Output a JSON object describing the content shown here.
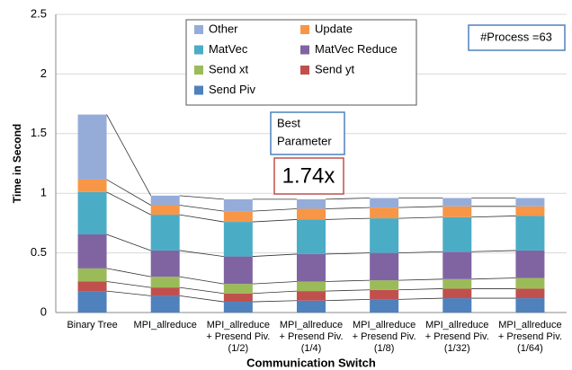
{
  "chart_data": {
    "type": "stacked_bar",
    "xlabel": "Communication Switch",
    "ylabel": "Time in Second",
    "categories": [
      [
        "Binary Tree"
      ],
      [
        "MPI_allreduce"
      ],
      [
        "MPI_allreduce",
        "+ Presend Piv.",
        "(1/2)"
      ],
      [
        "MPI_allreduce",
        "+ Presend Piv.",
        "(1/4)"
      ],
      [
        "MPI_allreduce",
        "+ Presend Piv.",
        "(1/8)"
      ],
      [
        "MPI_allreduce",
        "+ Presend Piv.",
        "(1/32)"
      ],
      [
        "MPI_allreduce",
        "+ Presend Piv.",
        "(1/64)"
      ]
    ],
    "series": [
      {
        "name": "Send Piv",
        "color": "#4f81bd",
        "values": [
          0.18,
          0.14,
          0.09,
          0.1,
          0.11,
          0.12,
          0.12
        ]
      },
      {
        "name": "Send yt",
        "color": "#c0504d",
        "values": [
          0.08,
          0.07,
          0.07,
          0.08,
          0.08,
          0.08,
          0.08
        ]
      },
      {
        "name": "Send xt",
        "color": "#9bbb59",
        "values": [
          0.11,
          0.09,
          0.08,
          0.08,
          0.08,
          0.08,
          0.09
        ]
      },
      {
        "name": "MatVec Reduce",
        "color": "#8064a2",
        "values": [
          0.285,
          0.22,
          0.23,
          0.23,
          0.23,
          0.23,
          0.23
        ]
      },
      {
        "name": "MatVec",
        "color": "#4bacc6",
        "values": [
          0.355,
          0.3,
          0.29,
          0.29,
          0.29,
          0.29,
          0.29
        ]
      },
      {
        "name": "Update",
        "color": "#f79646",
        "values": [
          0.105,
          0.08,
          0.09,
          0.09,
          0.09,
          0.09,
          0.08
        ]
      },
      {
        "name": "Other",
        "color": "#95acd8",
        "values": [
          0.545,
          0.08,
          0.1,
          0.08,
          0.08,
          0.07,
          0.07
        ]
      }
    ],
    "ylim": [
      0,
      2.5
    ],
    "yticks": [
      0,
      0.5,
      1,
      1.5,
      2,
      2.5
    ],
    "grid": true,
    "annotations": {
      "process": "#Process =63",
      "best": [
        "Best",
        "Parameter"
      ],
      "speedup": "1.74x"
    }
  }
}
